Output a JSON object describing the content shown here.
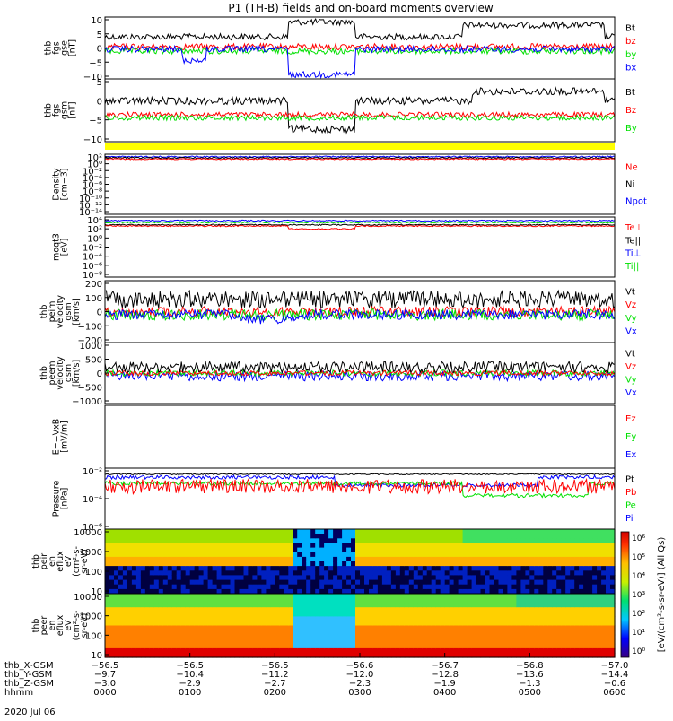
{
  "chart_data": {
    "type": "line",
    "title": "P1 (TH-B) fields and on-board moments overview",
    "date": "2020 Jul 06",
    "colors": {
      "black": "#000000",
      "red": "#ff0000",
      "green": "#00e000",
      "blue": "#0000ff",
      "yellow": "#ffff00"
    },
    "panels": [
      {
        "id": "fgs-gse",
        "ylabel": [
          "thb",
          "fgs",
          "gse",
          "[nT]"
        ],
        "ylim": [
          -10,
          10
        ],
        "ticks": [
          "10",
          "5",
          "0",
          "−5",
          "−10"
        ],
        "legend": [
          {
            "name": "Bt",
            "color": "#000000"
          },
          {
            "name": "bz",
            "color": "#ff0000"
          },
          {
            "name": "by",
            "color": "#00e000"
          },
          {
            "name": "bx",
            "color": "#0000ff"
          }
        ]
      },
      {
        "id": "fgs-gsm",
        "ylabel": [
          "thb",
          "fgs",
          "gsm",
          "[nT]"
        ],
        "ylim": [
          -12,
          8
        ],
        "ticks": [
          "5",
          "0",
          "−5",
          "−10"
        ],
        "legend": [
          {
            "name": "Bt",
            "color": "#000000"
          },
          {
            "name": "Bz",
            "color": "#ff0000"
          },
          {
            "name": "By",
            "color": "#00e000"
          }
        ]
      },
      {
        "id": "density",
        "ylabel": [
          "Density",
          "[cm−3]"
        ],
        "ticks": [
          "10²",
          "10⁰",
          "10⁻²",
          "10⁻⁴",
          "10⁻⁶",
          "10⁻⁸",
          "10⁻¹⁰",
          "10⁻¹²",
          "10⁻¹⁴"
        ],
        "legend": [
          {
            "name": "Ne",
            "color": "#ff0000"
          },
          {
            "name": "Ni",
            "color": "#000000"
          },
          {
            "name": "Npot",
            "color": "#0000ff"
          }
        ]
      },
      {
        "id": "temp",
        "ylabel": [
          "moqt3",
          "[eV]"
        ],
        "ticks": [
          "10⁴",
          "10²",
          "10⁰",
          "10⁻²",
          "10⁻⁴",
          "10⁻⁶",
          "10⁻⁸"
        ],
        "legend": [
          {
            "name": "Te⊥",
            "color": "#ff0000"
          },
          {
            "name": "Te||",
            "color": "#000000"
          },
          {
            "name": "Ti⊥",
            "color": "#0000ff"
          },
          {
            "name": "Ti||",
            "color": "#00e000"
          }
        ]
      },
      {
        "id": "peim",
        "ylabel": [
          "thb",
          "peim",
          "velocity",
          "gsm",
          "[km/s]"
        ],
        "ylim": [
          -200,
          200
        ],
        "ticks": [
          "200",
          "100",
          "0",
          "−100",
          "−200"
        ],
        "legend": [
          {
            "name": "Vt",
            "color": "#000000"
          },
          {
            "name": "Vz",
            "color": "#ff0000"
          },
          {
            "name": "Vy",
            "color": "#00e000"
          },
          {
            "name": "Vx",
            "color": "#0000ff"
          }
        ]
      },
      {
        "id": "peem",
        "ylabel": [
          "thb",
          "peem",
          "velocity",
          "gsm",
          "[km/s]"
        ],
        "ylim": [
          -1000,
          1000
        ],
        "ticks": [
          "1000",
          "500",
          "0",
          "−500",
          "−1000"
        ],
        "legend": [
          {
            "name": "Vt",
            "color": "#000000"
          },
          {
            "name": "Vz",
            "color": "#ff0000"
          },
          {
            "name": "Vy",
            "color": "#00e000"
          },
          {
            "name": "Vx",
            "color": "#0000ff"
          }
        ]
      },
      {
        "id": "efield",
        "ylabel": [
          "E=−VxB",
          "[mV/m]"
        ],
        "ticks": [],
        "legend": [
          {
            "name": "Ez",
            "color": "#ff0000"
          },
          {
            "name": "Ey",
            "color": "#00e000"
          },
          {
            "name": "Ex",
            "color": "#0000ff"
          }
        ]
      },
      {
        "id": "pressure",
        "ylabel": [
          "Pressure",
          "[nPa]"
        ],
        "ticks": [
          "10⁻²",
          "10⁻⁴",
          "10⁻⁶"
        ],
        "legend": [
          {
            "name": "Pt",
            "color": "#000000"
          },
          {
            "name": "Pb",
            "color": "#ff0000"
          },
          {
            "name": "Pe",
            "color": "#00e000"
          },
          {
            "name": "Pi",
            "color": "#0000ff"
          }
        ]
      },
      {
        "id": "peir",
        "ylabel": [
          "thb",
          "peir",
          "en",
          "eflux",
          "eV",
          "(cm²-s-",
          "sr-eV)"
        ],
        "ticks": [
          "10000",
          "1000",
          "100",
          "10"
        ],
        "legend": []
      },
      {
        "id": "peer",
        "ylabel": [
          "thb",
          "peer",
          "en",
          "eflux",
          "eV",
          "(cm²-s-",
          "sr-eV)"
        ],
        "ticks": [
          "10000",
          "1000",
          "100",
          "10"
        ],
        "legend": []
      }
    ],
    "colorbar": {
      "label": "[eV/(cm²-s-sr-eV)] (All Qs)",
      "ticks": [
        "10⁶",
        "10⁵",
        "10⁴",
        "10³",
        "10²",
        "10¹",
        "10⁰"
      ]
    },
    "xaxis": {
      "rows": [
        {
          "label": "thb_X-GSM",
          "values": [
            "−56.5",
            "−56.5",
            "−56.5",
            "−56.6",
            "−56.7",
            "−56.8",
            "−57.0"
          ]
        },
        {
          "label": "thb_Y-GSM",
          "values": [
            "−9.7",
            "−10.4",
            "−11.2",
            "−12.0",
            "−12.8",
            "−13.6",
            "−14.4"
          ]
        },
        {
          "label": "thb_Z-GSM",
          "values": [
            "−3.0",
            "−2.9",
            "−2.7",
            "−2.3",
            "−1.9",
            "−1.3",
            "−0.6"
          ]
        },
        {
          "label": "hhmm",
          "values": [
            "0000",
            "0100",
            "0200",
            "0300",
            "0400",
            "0500",
            "0600"
          ]
        }
      ]
    }
  }
}
